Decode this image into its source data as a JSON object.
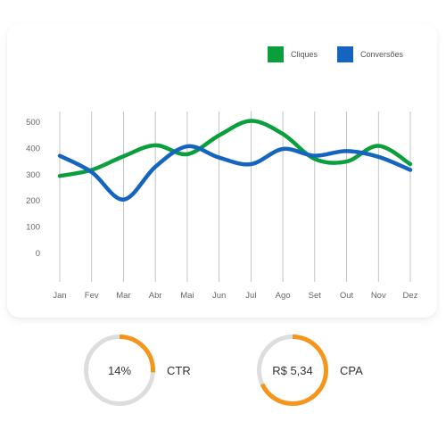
{
  "legend": [
    {
      "label": "Cliques",
      "color": "#0a9e3c"
    },
    {
      "label": "Conversões",
      "color": "#1565c0"
    }
  ],
  "chart_data": {
    "type": "line",
    "categories": [
      "Jan",
      "Fev",
      "Mar",
      "Abr",
      "Mai",
      "Jun",
      "Jul",
      "Ago",
      "Set",
      "Out",
      "Nov",
      "Dez"
    ],
    "series": [
      {
        "name": "Cliques",
        "color": "#0a9e3c",
        "values": [
          295,
          318,
          370,
          412,
          378,
          450,
          505,
          455,
          360,
          350,
          410,
          340
        ]
      },
      {
        "name": "Conversões",
        "color": "#1565c0",
        "values": [
          372,
          310,
          205,
          330,
          408,
          365,
          340,
          398,
          372,
          390,
          368,
          318
        ]
      }
    ],
    "yticks": [
      0,
      100,
      200,
      300,
      400,
      500
    ],
    "ylim": [
      0,
      500
    ],
    "title": "",
    "xlabel": "",
    "ylabel": "",
    "grid": "vertical",
    "legend_position": "top-right"
  },
  "kpis": [
    {
      "value_text": "14%",
      "label": "CTR",
      "fraction": 0.26,
      "accent": "#f5961c",
      "track": "#dddddd"
    },
    {
      "value_text": "R$ 5,34",
      "label": "CPA",
      "fraction": 0.68,
      "accent": "#f5961c",
      "track": "#dddddd"
    }
  ]
}
